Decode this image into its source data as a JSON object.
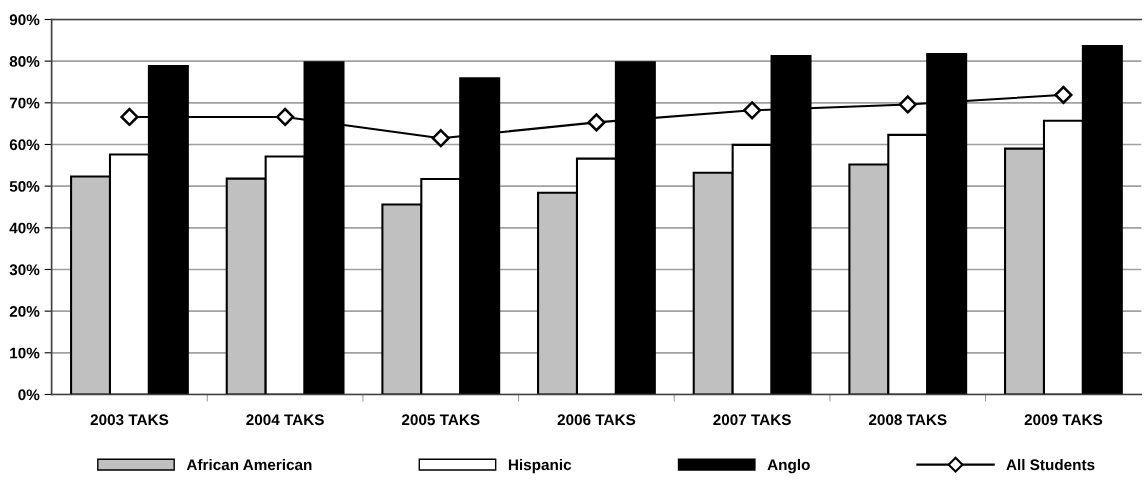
{
  "chart_data": {
    "type": "bar",
    "categories": [
      "2003 TAKS",
      "2004 TAKS",
      "2005 TAKS",
      "2006 TAKS",
      "2007 TAKS",
      "2008 TAKS",
      "2009 TAKS"
    ],
    "series": [
      {
        "name": "African American",
        "color": "#c0c0c0",
        "values": [
          52.3,
          51.8,
          45.6,
          48.4,
          53.2,
          55.2,
          59.0
        ]
      },
      {
        "name": "Hispanic",
        "color": "#ffffff",
        "values": [
          57.6,
          57.1,
          51.7,
          56.6,
          59.9,
          62.3,
          65.7
        ]
      },
      {
        "name": "Anglo",
        "color": "#000000",
        "values": [
          78.8,
          79.7,
          75.9,
          79.7,
          81.2,
          81.7,
          83.6
        ]
      },
      {
        "name": "All Students",
        "type": "line",
        "color": "#000000",
        "marker": "diamond",
        "values": [
          66.6,
          66.6,
          61.5,
          65.3,
          68.2,
          69.6,
          71.9
        ]
      }
    ],
    "ylim": [
      0,
      90
    ],
    "yticks": [
      {
        "value": 0,
        "label": "0%"
      },
      {
        "value": 10,
        "label": "10%"
      },
      {
        "value": 20,
        "label": "20%"
      },
      {
        "value": 30,
        "label": "30%"
      },
      {
        "value": 40,
        "label": "40%"
      },
      {
        "value": 50,
        "label": "50%"
      },
      {
        "value": 60,
        "label": "60%"
      },
      {
        "value": 70,
        "label": "70%"
      },
      {
        "value": 80,
        "label": "80%"
      },
      {
        "value": 90,
        "label": "90%"
      }
    ],
    "grid": "y",
    "legend": "bottom"
  }
}
